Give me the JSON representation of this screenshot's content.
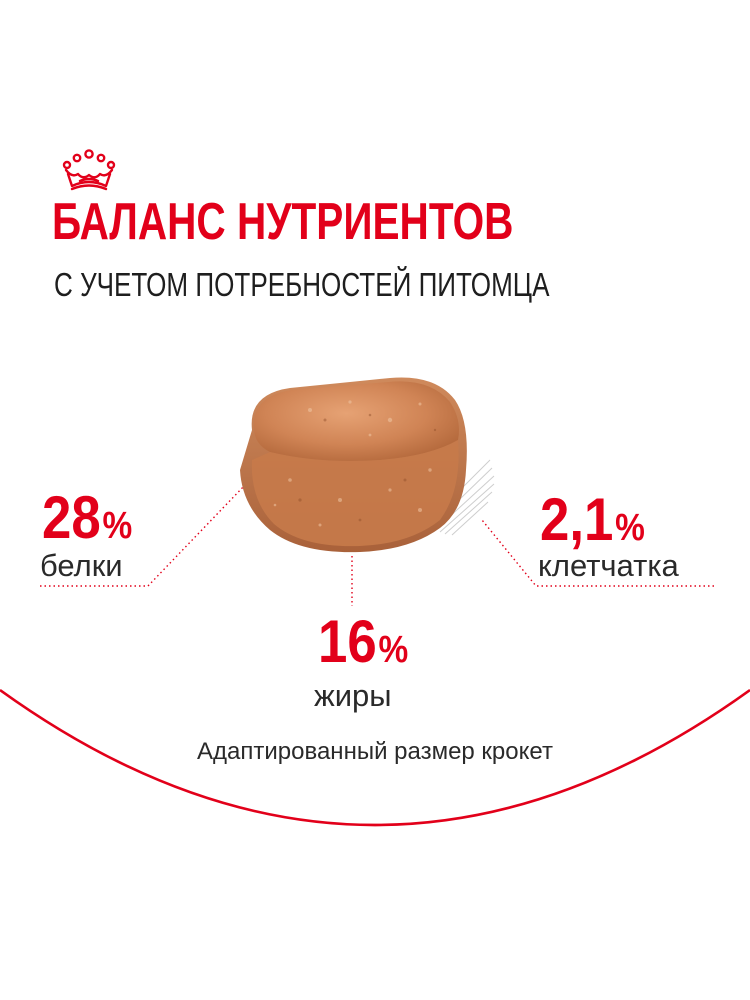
{
  "brand": {
    "logo": "crown-icon",
    "accent_color": "#e2001a"
  },
  "headline": "БАЛАНС НУТРИЕНТОВ",
  "subheadline": "С УЧЕТОМ ПОТРЕБНОСТЕЙ ПИТОМЦА",
  "image": {
    "subject": "kibble-image"
  },
  "nutrients": [
    {
      "value": "28",
      "unit": "%",
      "label": "белки"
    },
    {
      "value": "2,1",
      "unit": "%",
      "label": "клетчатка"
    },
    {
      "value": "16",
      "unit": "%",
      "label": "жиры"
    }
  ],
  "footer": {
    "text": "Адаптированный размер крокет"
  }
}
